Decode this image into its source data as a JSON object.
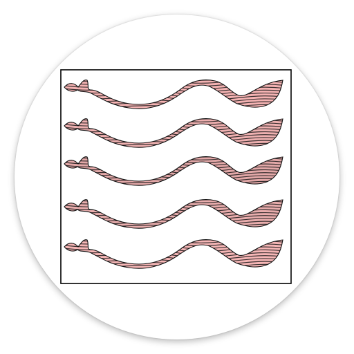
{
  "app_icon": {
    "name": "ribbon-waves-app-icon",
    "frame_color": "#000000",
    "background_color": "#ffffff",
    "stripe_color": "#1a1a1a",
    "ribbons": [
      {
        "fill": "#f5b3b3"
      },
      {
        "fill": "#eeb0b0"
      },
      {
        "fill": "#e3a8a8"
      },
      {
        "fill": "#e9adad"
      },
      {
        "fill": "#f6b6b6"
      }
    ]
  }
}
